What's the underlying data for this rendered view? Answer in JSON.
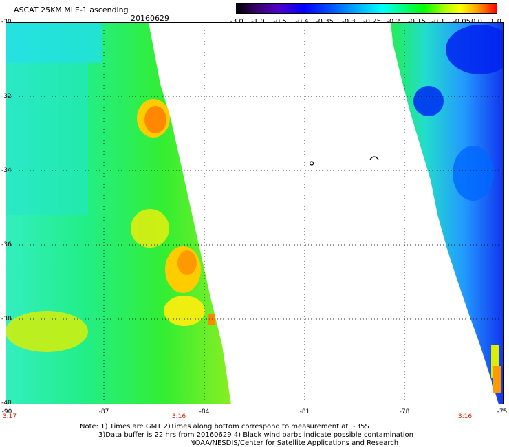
{
  "header": {
    "title": "ASCAT 25KM MLE-1 ascending",
    "date": "20160629"
  },
  "colorbar": {
    "labels": [
      "-3.0",
      "-1.0",
      "-0.5",
      "-0.4",
      "-0.35",
      "-0.3",
      "-0.25",
      "-0.2",
      "-0.15",
      "-0.1",
      "-0.05",
      "0.0",
      "1.0"
    ]
  },
  "map": {
    "lat_labels": [
      "-30",
      "-32",
      "-34",
      "-36",
      "-38",
      "-40"
    ],
    "lon_labels": [
      "-90",
      "-87",
      "-84",
      "-81",
      "-78",
      "-75"
    ],
    "time_labels": [
      "3:17",
      "3:16",
      "3:16"
    ]
  },
  "notes": {
    "line1": "Note: 1) Times are GMT 2)Times along bottom correspond to measurement at ~35S",
    "line2": "3)Data buffer is 22 hrs from 20160629 4) Black wind barbs indicate possible contamination",
    "line3": "NOAA/NESDIS/Center for Satellite Applications and Research"
  }
}
